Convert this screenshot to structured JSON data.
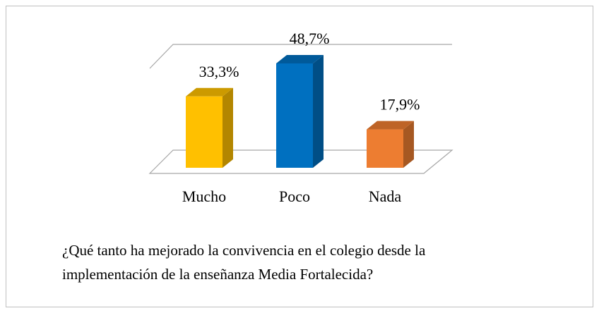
{
  "chart_data": {
    "type": "bar3d",
    "title": "¿Qué tanto ha mejorado la convivencia en el colegio desde la implementación de la enseñanza Media Fortalecida?",
    "categories": [
      "Mucho",
      "Poco",
      "Nada"
    ],
    "values": [
      33.3,
      48.7,
      17.9
    ],
    "value_labels": [
      "33,3%",
      "48,7%",
      "17,9%"
    ],
    "colors": [
      "#FFC000",
      "#0070C0",
      "#ED7D31"
    ]
  }
}
